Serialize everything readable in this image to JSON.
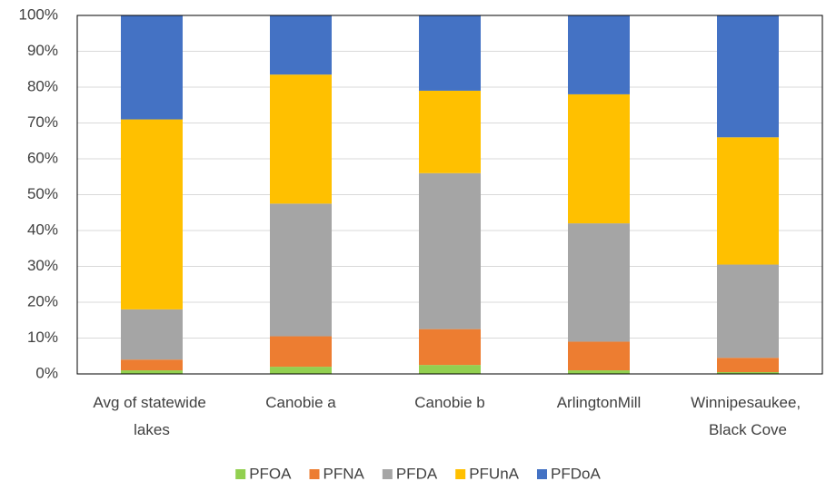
{
  "chart_data": {
    "type": "stacked_bar_100",
    "categories": [
      "Avg of statewide lakes",
      "Canobie a",
      "Canobie b",
      "ArlingtonMill",
      "Winnipesaukee, Black Cove"
    ],
    "series": [
      {
        "name": "PFOA",
        "color": "#92d050",
        "values": [
          1,
          2,
          2.5,
          1,
          0.5
        ]
      },
      {
        "name": "PFNA",
        "color": "#ed7d31",
        "values": [
          3,
          8.5,
          10,
          8,
          4
        ]
      },
      {
        "name": "PFDA",
        "color": "#a5a5a5",
        "values": [
          14,
          37,
          43.5,
          33,
          26
        ]
      },
      {
        "name": "PFUnA",
        "color": "#ffc000",
        "values": [
          53,
          36,
          23,
          36,
          35.5
        ]
      },
      {
        "name": "PFDoA",
        "color": "#4472c4",
        "values": [
          29,
          16.5,
          21,
          22,
          34
        ]
      }
    ],
    "ylim": [
      0,
      100
    ],
    "yticks": [
      {
        "value": 0,
        "label": "0%"
      },
      {
        "value": 10,
        "label": "10%"
      },
      {
        "value": 20,
        "label": "20%"
      },
      {
        "value": 30,
        "label": "30%"
      },
      {
        "value": 40,
        "label": "40%"
      },
      {
        "value": 50,
        "label": "50%"
      },
      {
        "value": 60,
        "label": "60%"
      },
      {
        "value": 70,
        "label": "70%"
      },
      {
        "value": 80,
        "label": "80%"
      },
      {
        "value": 90,
        "label": "90%"
      },
      {
        "value": 100,
        "label": "100%"
      }
    ],
    "grid": true,
    "legend": "bottom"
  }
}
